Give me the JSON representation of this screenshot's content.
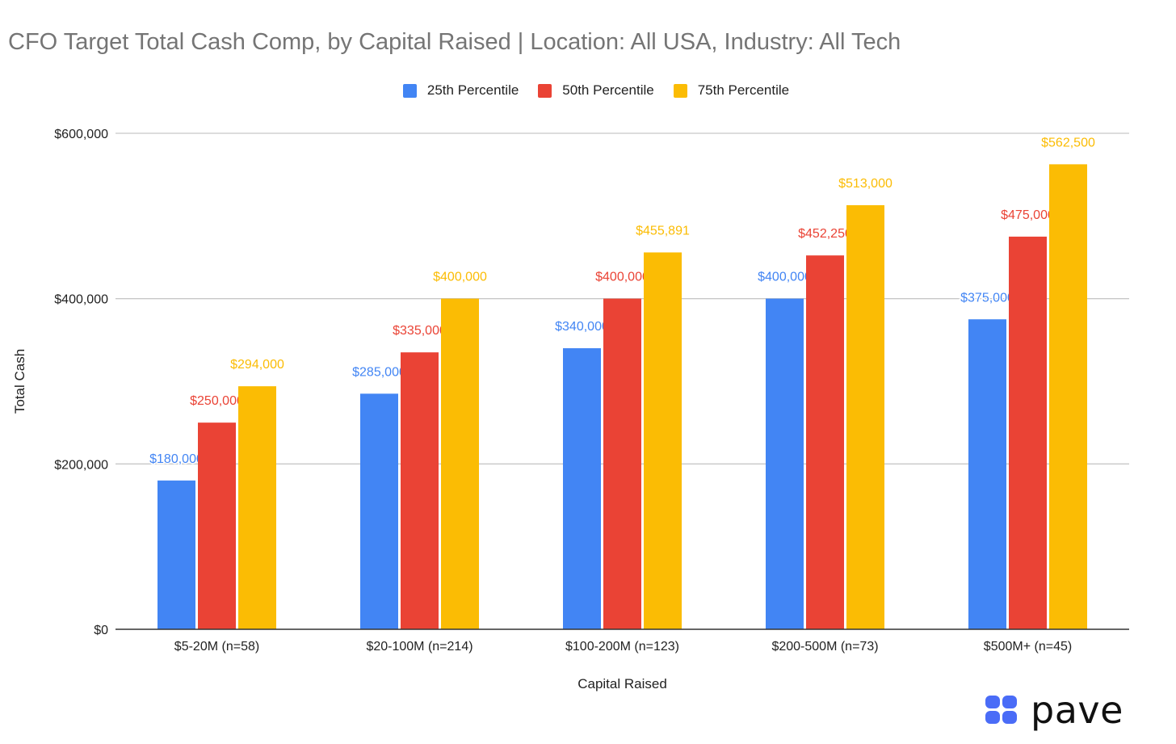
{
  "chart_data": {
    "type": "bar",
    "title": "CFO Target Total Cash Comp, by Capital Raised | Location: All USA, Industry: All Tech",
    "xlabel": "Capital Raised",
    "ylabel": "Total Cash",
    "categories": [
      "$5-20M (n=58)",
      "$20-100M (n=214)",
      "$100-200M (n=123)",
      "$200-500M (n=73)",
      "$500M+ (n=45)"
    ],
    "series": [
      {
        "name": "25th Percentile",
        "color": "#4285F4",
        "values": [
          180000,
          285000,
          340000,
          400000,
          375000
        ],
        "labels": [
          "$180,000",
          "$285,000",
          "$340,000",
          "$400,000",
          "$375,000"
        ]
      },
      {
        "name": "50th Percentile",
        "color": "#EA4335",
        "values": [
          250000,
          335000,
          400000,
          452250,
          475000
        ],
        "labels": [
          "$250,000",
          "$335,000",
          "$400,000",
          "$452,250",
          "$475,000"
        ]
      },
      {
        "name": "75th Percentile",
        "color": "#FBBC04",
        "values": [
          294000,
          400000,
          455891,
          513000,
          562500
        ],
        "labels": [
          "$294,000",
          "$400,000",
          "$455,891",
          "$513,000",
          "$562,500"
        ]
      }
    ],
    "ylim": [
      0,
      600000
    ],
    "yticks": [
      0,
      200000,
      400000,
      600000
    ],
    "ytick_labels": [
      "$0",
      "$200,000",
      "$400,000",
      "$600,000"
    ],
    "grid": true,
    "legend_position": "top"
  },
  "brand": {
    "name": "pave",
    "logo_color": "#4A6CF7"
  }
}
